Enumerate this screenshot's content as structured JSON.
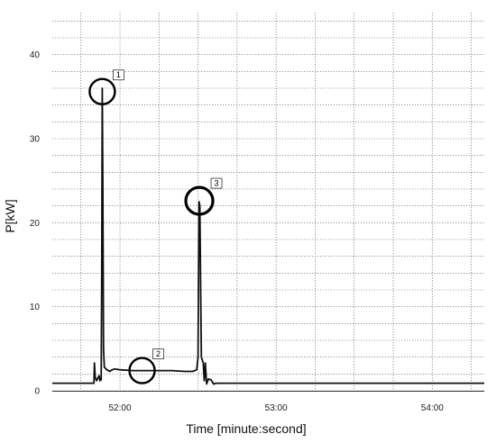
{
  "chart_data": {
    "type": "line",
    "xlabel": "Time [minute:second]",
    "ylabel": "P[kW]",
    "ylim": [
      0,
      45
    ],
    "yticks": [
      0,
      10,
      20,
      30,
      40
    ],
    "xlim_s": [
      3094,
      3158
    ],
    "xticks": [
      {
        "t": 3120,
        "label": "52:00"
      },
      {
        "t": 3180,
        "label": "53:00"
      },
      {
        "t": 3240,
        "label": "54:00"
      }
    ],
    "grid": true,
    "series": [
      {
        "points": [
          [
            3094,
            0.9
          ],
          [
            3109,
            0.9
          ],
          [
            3110,
            0.9
          ],
          [
            3110.2,
            3.3
          ],
          [
            3110.5,
            1.6
          ],
          [
            3111,
            1.2
          ],
          [
            3112,
            1.8
          ],
          [
            3112.3,
            1.2
          ],
          [
            3112.8,
            1.3
          ],
          [
            3113.0,
            14.0
          ],
          [
            3113.2,
            36.0
          ],
          [
            3113.4,
            25.0
          ],
          [
            3113.7,
            5.0
          ],
          [
            3114,
            2.8
          ],
          [
            3115,
            2.5
          ],
          [
            3116,
            2.3
          ],
          [
            3117,
            2.5
          ],
          [
            3118,
            2.6
          ],
          [
            3120,
            2.5
          ],
          [
            3125,
            2.4
          ],
          [
            3130,
            2.4
          ],
          [
            3135,
            2.4
          ],
          [
            3140,
            2.4
          ],
          [
            3145,
            2.3
          ],
          [
            3148,
            2.3
          ],
          [
            3149.5,
            2.5
          ],
          [
            3150,
            4.0
          ],
          [
            3150.4,
            22.5
          ],
          [
            3150.7,
            22.0
          ],
          [
            3151.0,
            12.0
          ],
          [
            3151.3,
            4.0
          ],
          [
            3152,
            3.3
          ],
          [
            3152.4,
            1.2
          ],
          [
            3152.8,
            3.3
          ],
          [
            3153.3,
            0.8
          ],
          [
            3154,
            1.4
          ],
          [
            3155,
            1.3
          ],
          [
            3156,
            0.8
          ],
          [
            3157,
            0.9
          ],
          [
            3158,
            0.9
          ]
        ]
      }
    ],
    "annotations": [
      {
        "label": "1",
        "t": 3113.2,
        "y": 35.6
      },
      {
        "label": "2",
        "t": 3128.5,
        "y": 2.4
      },
      {
        "label": "3",
        "t": 3150.5,
        "y": 22.6
      }
    ]
  }
}
